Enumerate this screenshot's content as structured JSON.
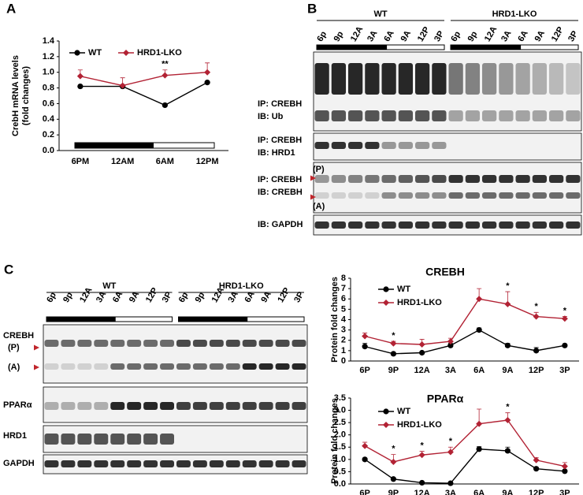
{
  "panel_labels": [
    "A",
    "B",
    "C"
  ],
  "chart_data": [
    {
      "type": "line",
      "categories": [
        "6PM",
        "12AM",
        "6AM",
        "12PM"
      ],
      "ylabel": [
        "CrebH mRNA levels",
        "(fold changes)"
      ],
      "ylim": [
        0,
        1.4
      ],
      "yticks": [
        {
          "value": 0,
          "label": "0.0"
        },
        {
          "value": 0.2,
          "label": "0.2"
        },
        {
          "value": 0.4,
          "label": "0.4"
        },
        {
          "value": 0.6,
          "label": "0.6"
        },
        {
          "value": 0.8,
          "label": "0.8"
        },
        {
          "value": 1,
          "label": "1.0"
        },
        {
          "value": 1.2,
          "label": "1.2"
        },
        {
          "value": 1.4,
          "label": "1.4"
        }
      ],
      "series": [
        {
          "name": "WT",
          "color": "#000000",
          "marker": "circle",
          "values": [
            0.82,
            0.82,
            0.58,
            0.87
          ]
        },
        {
          "name": "HRD1-LKO",
          "color": "#b22234",
          "marker": "diamond",
          "values": [
            0.95,
            0.83,
            0.96,
            1.0
          ],
          "errors": [
            0.08,
            0.1,
            0.07,
            0.12
          ]
        }
      ],
      "significance": [
        null,
        null,
        "**",
        null
      ]
    },
    {
      "type": "line",
      "title": "CREBH",
      "categories": [
        "6P",
        "9P",
        "12A",
        "3A",
        "6A",
        "9A",
        "12P",
        "3P"
      ],
      "ylabel": [
        "Protein fold changes"
      ],
      "ylim": [
        0,
        8
      ],
      "yticks": [
        0,
        1,
        2,
        3,
        4,
        5,
        6,
        7,
        8
      ],
      "series": [
        {
          "name": "WT",
          "color": "#000000",
          "marker": "circle",
          "values": [
            1.4,
            0.7,
            0.8,
            1.5,
            3.0,
            1.5,
            1.0,
            1.5
          ],
          "errors": [
            0.3,
            0.1,
            0.1,
            0.2,
            0.2,
            0.2,
            0.3,
            0.1
          ]
        },
        {
          "name": "HRD1-LKO",
          "color": "#b22234",
          "marker": "diamond",
          "values": [
            2.4,
            1.7,
            1.6,
            1.9,
            6.0,
            5.5,
            4.3,
            4.1
          ],
          "errors": [
            0.3,
            0.2,
            0.5,
            0.3,
            1.0,
            1.2,
            0.4,
            0.2
          ]
        }
      ],
      "significance": [
        null,
        "*",
        null,
        null,
        null,
        "*",
        "*",
        "*"
      ]
    },
    {
      "type": "line",
      "title": "PPARα",
      "categories": [
        "6P",
        "9P",
        "12A",
        "3A",
        "6A",
        "9A",
        "12P",
        "3P"
      ],
      "ylabel": [
        "Protein fold changes"
      ],
      "ylim": [
        0,
        3.5
      ],
      "yticks": [
        {
          "value": 0,
          "label": "0.0"
        },
        {
          "value": 0.5,
          "label": "0.5"
        },
        {
          "value": 1,
          "label": "1.0"
        },
        {
          "value": 1.5,
          "label": "1.5"
        },
        {
          "value": 2,
          "label": "2.0"
        },
        {
          "value": 2.5,
          "label": "2.5"
        },
        {
          "value": 3,
          "label": "3.0"
        },
        {
          "value": 3.5,
          "label": "3.5"
        }
      ],
      "series": [
        {
          "name": "WT",
          "color": "#000000",
          "marker": "circle",
          "values": [
            1.0,
            0.2,
            0.05,
            0.03,
            1.42,
            1.35,
            0.62,
            0.52
          ],
          "errors": [
            0.05,
            0.05,
            0.02,
            0.02,
            0.1,
            0.15,
            0.05,
            0.05
          ]
        },
        {
          "name": "HRD1-LKO",
          "color": "#b22234",
          "marker": "diamond",
          "values": [
            1.55,
            0.9,
            1.18,
            1.3,
            2.45,
            2.6,
            0.97,
            0.72
          ],
          "errors": [
            0.15,
            0.3,
            0.15,
            0.2,
            0.6,
            0.3,
            0.1,
            0.15
          ]
        }
      ],
      "significance": [
        null,
        "*",
        "*",
        "*",
        null,
        "*",
        null,
        null
      ]
    }
  ],
  "blot_b": {
    "groups": [
      "WT",
      "HRD1-LKO"
    ],
    "lanes": [
      "6p",
      "9p",
      "12A",
      "3A",
      "6A",
      "9A",
      "12P",
      "3P",
      "6p",
      "9p",
      "12A",
      "3A",
      "6A",
      "9A",
      "12P",
      "3P"
    ],
    "rows": [
      [
        "IP: CREBH",
        "IB: Ub"
      ],
      [
        "IP: CREBH",
        "IB: HRD1"
      ],
      [
        "IP: CREBH",
        "IB: CREBH"
      ],
      [
        "IB: GAPDH"
      ]
    ],
    "markers": [
      "(P)",
      "(A)"
    ]
  },
  "blot_c": {
    "groups": [
      "WT",
      "HRD1-LKO"
    ],
    "lanes": [
      "6p",
      "9p",
      "12A",
      "3A",
      "6A",
      "9A",
      "12P",
      "3P",
      "6p",
      "9p",
      "12A",
      "3A",
      "6A",
      "9A",
      "12P",
      "3P"
    ],
    "rows": [
      "CREBH",
      "PPARα",
      "HRD1",
      "GAPDH"
    ],
    "markers": [
      "(P)",
      "(A)"
    ]
  }
}
